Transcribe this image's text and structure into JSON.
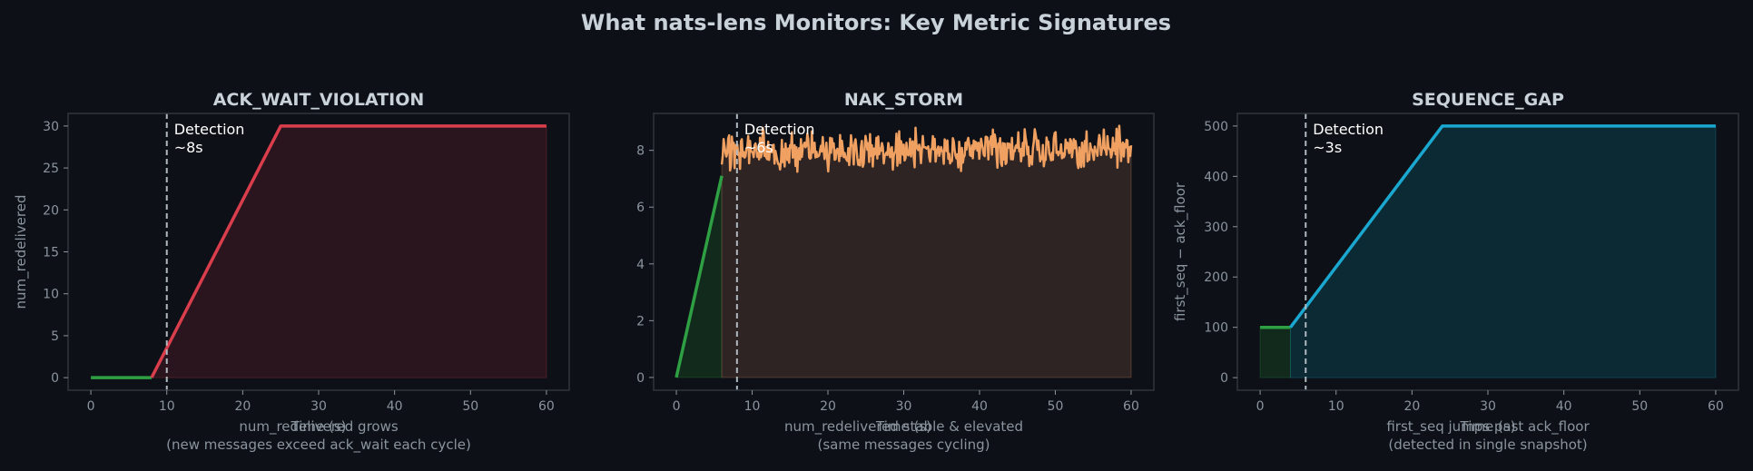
{
  "title": "What nats-lens Monitors: Key Metric Signatures",
  "colors": {
    "background": "#0d1117",
    "frame": "#30363d",
    "text": "#c9d1d9",
    "muted": "#8b949e",
    "normal": "#2ea043",
    "detection_line": "#b0b8c0"
  },
  "chart_data": [
    {
      "type": "line",
      "title": "ACK_WAIT_VIOLATION",
      "xlabel": "Time (s)",
      "ylabel": "num_redelivered",
      "caption": [
        "num_redelivered grows",
        "(new messages exceed ack_wait each cycle)"
      ],
      "xlim": [
        -3,
        63
      ],
      "ylim": [
        -1.5,
        31.5
      ],
      "xticks": [
        0,
        10,
        20,
        30,
        40,
        50,
        60
      ],
      "yticks": [
        0,
        5,
        10,
        15,
        20,
        25,
        30
      ],
      "grid": false,
      "detection": {
        "x": 10,
        "label": [
          "Detection",
          "~8s"
        ]
      },
      "series": [
        {
          "role": "normal",
          "color": "#2ea043",
          "fill": false,
          "x": [
            0,
            8
          ],
          "y": [
            0,
            0
          ]
        },
        {
          "role": "anomaly",
          "color": "#da3d4c",
          "fill": true,
          "fill_color": "#2a151e",
          "x": [
            8,
            25,
            60
          ],
          "y": [
            0,
            30,
            30
          ]
        }
      ]
    },
    {
      "type": "line",
      "title": "NAK_STORM",
      "xlabel": "Time (s)",
      "ylabel": "",
      "caption": [
        "num_redelivered stable & elevated",
        "(same messages cycling)"
      ],
      "xlim": [
        -3,
        63
      ],
      "ylim": [
        -0.45,
        9.3
      ],
      "xticks": [
        0,
        10,
        20,
        30,
        40,
        50,
        60
      ],
      "yticks": [
        0,
        2,
        4,
        6,
        8
      ],
      "grid": false,
      "detection": {
        "x": 8,
        "label": [
          "Detection",
          "~6s"
        ]
      },
      "series": [
        {
          "role": "normal",
          "color": "#2ea043",
          "fill": true,
          "fill_color": "#112a1c",
          "x": [
            0,
            6
          ],
          "y": [
            0,
            7.1
          ]
        },
        {
          "role": "anomaly",
          "color": "#f0a060",
          "fill": true,
          "fill_color": "#2e2424",
          "noisy": true,
          "x_start": 6,
          "x_end": 60,
          "mean": 8.0,
          "amplitude": 0.55
        }
      ]
    },
    {
      "type": "line",
      "title": "SEQUENCE_GAP",
      "xlabel": "Time (s)",
      "ylabel": "first_seq − ack_floor",
      "caption": [
        "first_seq jumps past ack_floor",
        "(detected in single snapshot)"
      ],
      "xlim": [
        -3,
        63
      ],
      "ylim": [
        -25,
        525
      ],
      "xticks": [
        0,
        10,
        20,
        30,
        40,
        50,
        60
      ],
      "yticks": [
        0,
        100,
        200,
        300,
        400,
        500
      ],
      "grid": false,
      "detection": {
        "x": 6,
        "label": [
          "Detection",
          "~3s"
        ]
      },
      "series": [
        {
          "role": "normal",
          "color": "#2ea043",
          "fill": true,
          "fill_color": "#112a1c",
          "x": [
            0,
            4
          ],
          "y": [
            100,
            100
          ]
        },
        {
          "role": "anomaly",
          "color": "#1aa7d0",
          "fill": true,
          "fill_color": "#0c2a33",
          "x": [
            4,
            24,
            60
          ],
          "y": [
            100,
            500,
            500
          ]
        }
      ]
    }
  ]
}
